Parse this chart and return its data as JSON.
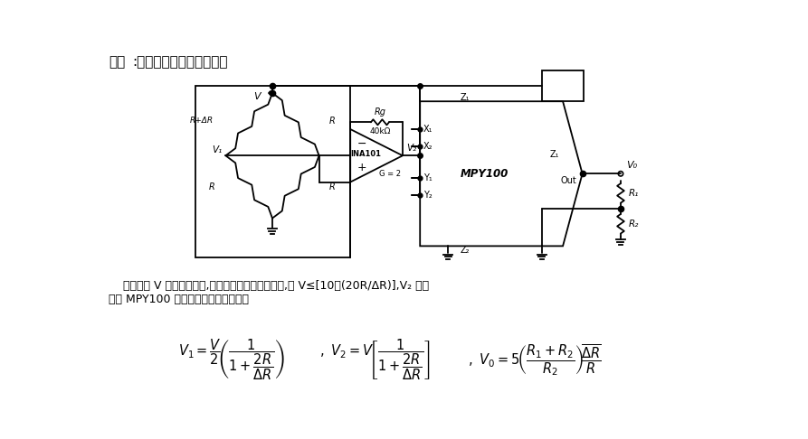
{
  "title_text": "用途:用于传感器线性化电路。",
  "desc_line1": "    电路中的 V 应当尽可能大,使分压器的误差减至最小,但 V≤[10＋(20R/ΔR)],V₂ 应保",
  "desc_line2": "持在 MPY100 的输入电压额定范围内。",
  "bg_color": "#ffffff",
  "text_color": "#000000",
  "line_color": "#000000",
  "fig_width": 8.93,
  "fig_height": 4.86,
  "dpi": 100
}
